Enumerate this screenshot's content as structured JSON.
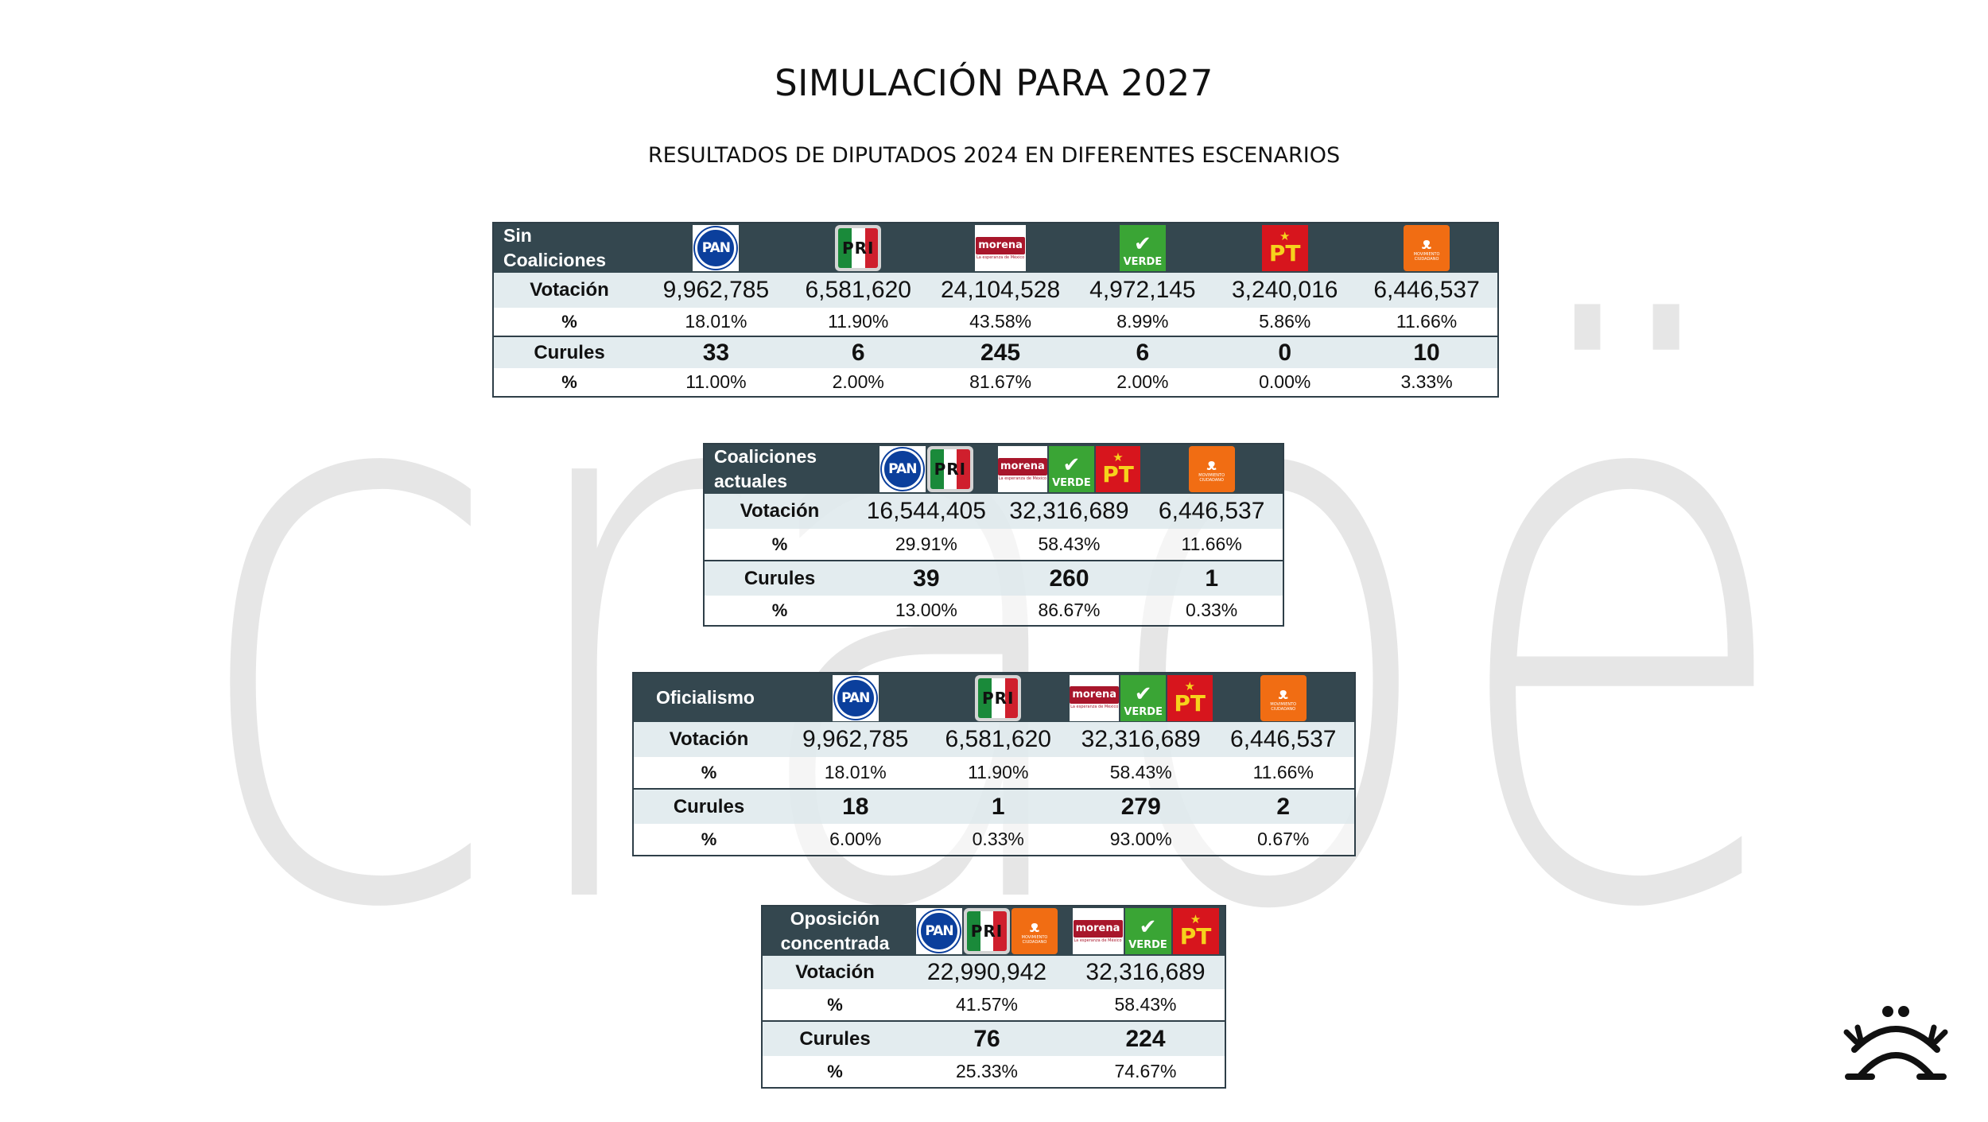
{
  "title": "SIMULACIÓN PARA 2027",
  "subtitle": "RESULTADOS DE DIPUTADOS 2024 EN DIFERENTES ESCENARIOS",
  "watermark_text": "craoë",
  "row_labels": {
    "votes": "Votación",
    "pct": "%",
    "seats": "Curules"
  },
  "logo_text": {
    "pan": "PAN",
    "pri": "PRI",
    "morena": "morena",
    "morena_tag": "La esperanza de México",
    "verde": "VERDE",
    "pt": "PT",
    "mc": "MOVIMIENTO CIUDADANO"
  },
  "colors": {
    "header_bg": "#34474f",
    "row_shade": "#e1eaee",
    "pan": "#0b3f9c",
    "pri_green": "#1a8a3a",
    "pri_red": "#cf1f2d",
    "morena": "#a8162b",
    "verde": "#3aa535",
    "pt": "#d7151d",
    "mc": "#f16d13",
    "watermark": "#dcdcdc"
  },
  "scenarios": [
    {
      "name": "Sin Coaliciones",
      "columns": [
        {
          "logos": [
            "pan-icon"
          ],
          "votes": "9,962,785",
          "pct": "18.01%",
          "seats": "33",
          "seat_pct": "11.00%"
        },
        {
          "logos": [
            "pri-icon"
          ],
          "votes": "6,581,620",
          "pct": "11.90%",
          "seats": "6",
          "seat_pct": "2.00%"
        },
        {
          "logos": [
            "morena-icon"
          ],
          "votes": "24,104,528",
          "pct": "43.58%",
          "seats": "245",
          "seat_pct": "81.67%"
        },
        {
          "logos": [
            "verde-icon"
          ],
          "votes": "4,972,145",
          "pct": "8.99%",
          "seats": "6",
          "seat_pct": "2.00%"
        },
        {
          "logos": [
            "pt-icon"
          ],
          "votes": "3,240,016",
          "pct": "5.86%",
          "seats": "0",
          "seat_pct": "0.00%"
        },
        {
          "logos": [
            "mc-icon"
          ],
          "votes": "6,446,537",
          "pct": "11.66%",
          "seats": "10",
          "seat_pct": "3.33%"
        }
      ]
    },
    {
      "name": "Coaliciones actuales",
      "columns": [
        {
          "logos": [
            "pan-icon",
            "pri-icon"
          ],
          "votes": "16,544,405",
          "pct": "29.91%",
          "seats": "39",
          "seat_pct": "13.00%"
        },
        {
          "logos": [
            "morena-icon",
            "verde-icon",
            "pt-icon"
          ],
          "votes": "32,316,689",
          "pct": "58.43%",
          "seats": "260",
          "seat_pct": "86.67%"
        },
        {
          "logos": [
            "mc-icon"
          ],
          "votes": "6,446,537",
          "pct": "11.66%",
          "seats": "1",
          "seat_pct": "0.33%"
        }
      ]
    },
    {
      "name": "Oficialismo",
      "columns": [
        {
          "logos": [
            "pan-icon"
          ],
          "votes": "9,962,785",
          "pct": "18.01%",
          "seats": "18",
          "seat_pct": "6.00%"
        },
        {
          "logos": [
            "pri-icon"
          ],
          "votes": "6,581,620",
          "pct": "11.90%",
          "seats": "1",
          "seat_pct": "0.33%"
        },
        {
          "logos": [
            "morena-icon",
            "verde-icon",
            "pt-icon"
          ],
          "votes": "32,316,689",
          "pct": "58.43%",
          "seats": "279",
          "seat_pct": "93.00%"
        },
        {
          "logos": [
            "mc-icon"
          ],
          "votes": "6,446,537",
          "pct": "11.66%",
          "seats": "2",
          "seat_pct": "0.67%"
        }
      ]
    },
    {
      "name": "Oposición concentrada",
      "columns": [
        {
          "logos": [
            "pan-icon",
            "pri-icon",
            "mc-icon"
          ],
          "votes": "22,990,942",
          "pct": "41.57%",
          "seats": "76",
          "seat_pct": "25.33%"
        },
        {
          "logos": [
            "morena-icon",
            "verde-icon",
            "pt-icon"
          ],
          "votes": "32,316,689",
          "pct": "58.43%",
          "seats": "224",
          "seat_pct": "74.67%"
        }
      ]
    }
  ]
}
